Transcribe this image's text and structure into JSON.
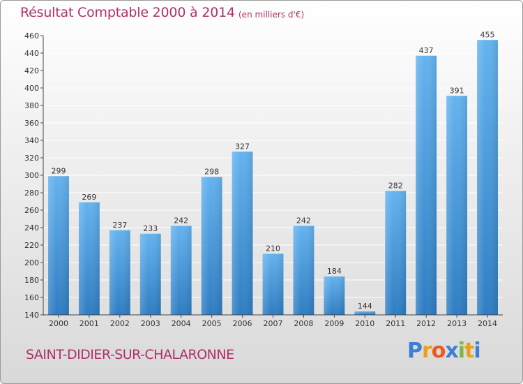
{
  "title": "Résultat Comptable 2000 à 2014",
  "subtitle": "(en milliers d'€)",
  "commune": "SAINT-DIDIER-SUR-CHALARONNE",
  "brand": {
    "letters": [
      "P",
      "r",
      "o",
      "x",
      "i",
      "t",
      "i"
    ],
    "colors": [
      "#3d7fd6",
      "#e8a21a",
      "#e85a1e",
      "#3d7fd6",
      "#7ab648",
      "#e8a21a",
      "#3d7fd6"
    ]
  },
  "colors": {
    "bar_light": "#64b3ef",
    "bar_dark": "#2e7dc2",
    "grid": "#ffffff",
    "axis_text": "#333333"
  },
  "chart_data": {
    "type": "bar",
    "categories": [
      "2000",
      "2001",
      "2002",
      "2003",
      "2004",
      "2005",
      "2006",
      "2007",
      "2008",
      "2009",
      "2010",
      "2011",
      "2012",
      "2013",
      "2014"
    ],
    "values": [
      299,
      269,
      237,
      233,
      242,
      298,
      327,
      210,
      242,
      184,
      144,
      282,
      437,
      391,
      455
    ],
    "ylim": [
      140,
      460
    ],
    "yticks": [
      "140",
      "160",
      "180",
      "200",
      "220",
      "240",
      "260",
      "280",
      "300",
      "320",
      "340",
      "360",
      "380",
      "400",
      "420",
      "440",
      "460"
    ],
    "xlabel": "",
    "ylabel": "",
    "grid": true
  }
}
